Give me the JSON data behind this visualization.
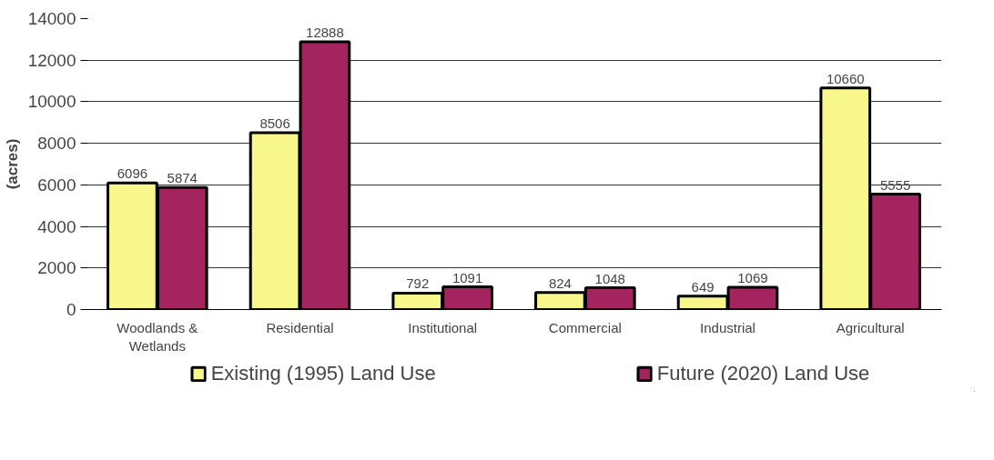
{
  "chart_data": {
    "type": "bar",
    "ylabel": "(acres)",
    "categories": [
      "Woodlands &\nWetlands",
      "Residential",
      "Institutional",
      "Commercial",
      "Industrial",
      "Agricultural"
    ],
    "series": [
      {
        "name": "Existing (1995) Land Use",
        "color": "#f7f78c",
        "values": [
          6096,
          8506,
          792,
          824,
          649,
          10660
        ]
      },
      {
        "name": "Future (2020) Land Use",
        "color": "#a3245e",
        "values": [
          5874,
          12888,
          1091,
          1048,
          1069,
          5555
        ]
      }
    ],
    "ylim": [
      0,
      14000
    ],
    "yticks": [
      0,
      2000,
      4000,
      6000,
      8000,
      10000,
      12000,
      14000
    ],
    "grid": "y",
    "legend": "bottom",
    "data_labels": true
  }
}
